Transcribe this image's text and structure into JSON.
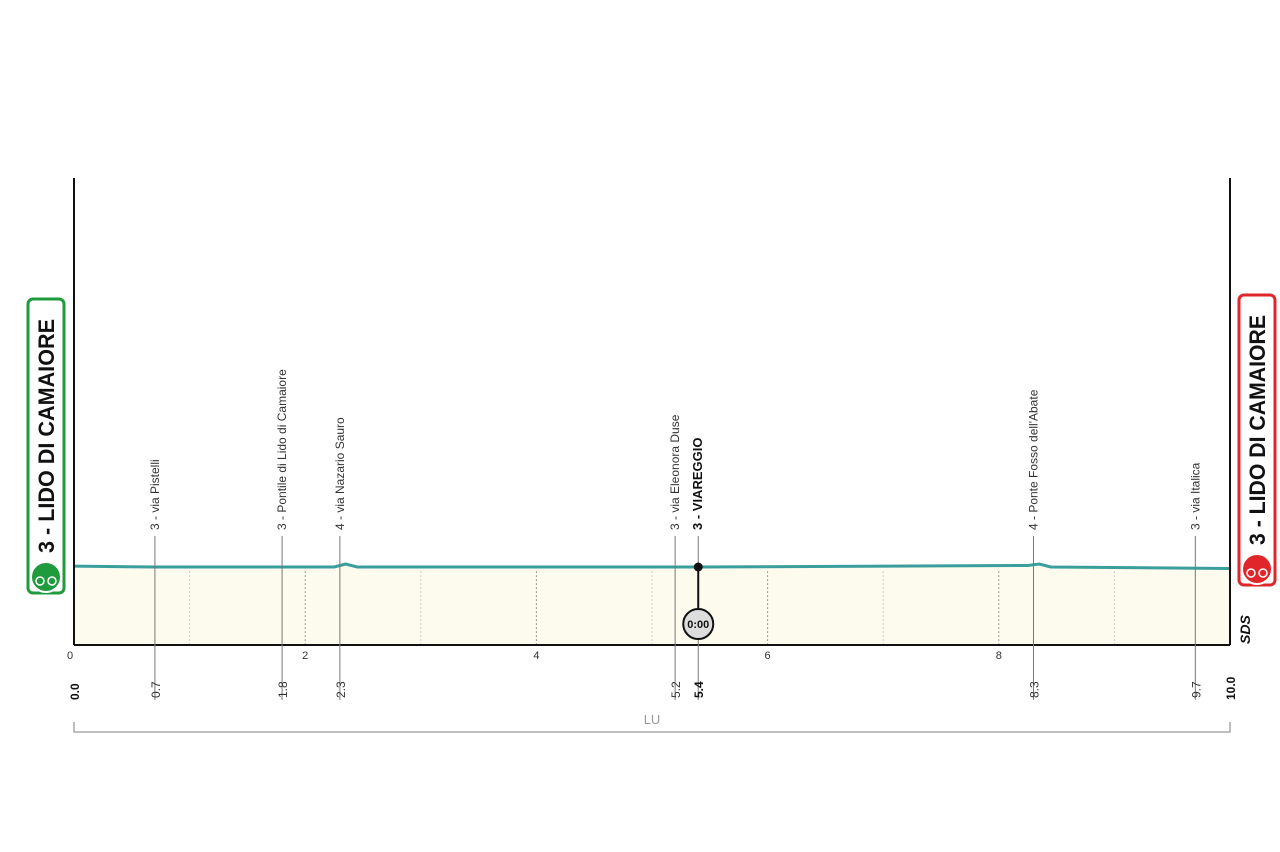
{
  "chart_data": {
    "type": "profile",
    "xlim": [
      0,
      10
    ],
    "ylim": [
      -23,
      132
    ],
    "xticks": [
      0,
      2,
      4,
      6,
      8
    ],
    "x": [
      0,
      0.7,
      2.25,
      2.35,
      2.45,
      5.4,
      8.25,
      8.35,
      8.45,
      10
    ],
    "values": [
      3.3,
      3,
      3,
      4,
      3,
      3,
      3.5,
      4,
      3,
      2.5
    ],
    "color": "#3a9e9c",
    "fill": "#fdfbee",
    "start": {
      "label": "3 - LIDO DI CAMAIORE",
      "km": {
        "value": 0,
        "label": "0.0"
      },
      "color": "#1f9a3c"
    },
    "finish": {
      "label": "3 - LIDO DI CAMAIORE",
      "km": {
        "value": 10,
        "label": "10.0"
      },
      "color": "#e0262b"
    },
    "waypoints": [
      {
        "km": 0.7,
        "label": "3 - via Pistelli"
      },
      {
        "km": 1.8,
        "label": "3 - Pontile di Lido di Camaiore"
      },
      {
        "km": 2.3,
        "label": "4 - via Nazario Sauro"
      },
      {
        "km": 5.2,
        "label": "3 - via Eleonora Duse"
      },
      {
        "km": 5.4,
        "label": "3 - VIAREGGIO",
        "bold": true,
        "timecheck": "0:00"
      },
      {
        "km": 8.3,
        "label": "4 - Ponte Fosso dell'Abate"
      },
      {
        "km": 9.7,
        "label": "3 - via Italica"
      }
    ],
    "province": "LU",
    "logo": "SDS"
  }
}
